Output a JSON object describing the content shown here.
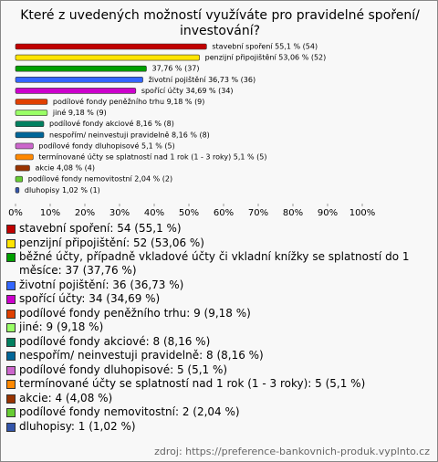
{
  "chart_data": {
    "type": "bar",
    "orientation": "horizontal",
    "title": "Které z uvedených možností využíváte pro pravidelné spoření/ investování?",
    "values": [
      55.1,
      53.06,
      37.76,
      36.73,
      34.69,
      9.18,
      9.18,
      8.16,
      8.16,
      5.1,
      5.1,
      4.08,
      2.04,
      1.02
    ],
    "value_labels": [
      "stavební spoření 55,1 % (54)",
      "penzijní připojištění 53,06 % (52)",
      "37,76 % (37)",
      "životní pojištění 36,73 % (36)",
      "spořící účty 34,69 % (34)",
      "podílové fondy peněžního trhu 9,18 % (9)",
      "jiné 9,18 % (9)",
      "podílové fondy akciové 8,16 % (8)",
      "nespořím/ neinvestuji pravidelně 8,16 % (8)",
      "podílové fondy dluhopisové 5,1 % (5)",
      "termínované účty se splatností nad 1 rok (1 - 3 roky) 5,1 % (5)",
      "akcie 4,08 % (4)",
      "podílové fondy nemovitostní 2,04 % (2)",
      "dluhopisy 1,02 % (1)"
    ],
    "colors": [
      "#c00000",
      "#ffe400",
      "#00a000",
      "#3366ff",
      "#cc00cc",
      "#e04000",
      "#99ff66",
      "#008060",
      "#006699",
      "#cc66cc",
      "#ff8800",
      "#993300",
      "#66cc33",
      "#3355aa"
    ],
    "legend": [
      "stavební spoření: 54 (55,1 %)",
      "penzijní připojištění: 52 (53,06 %)",
      "běžné účty, případně vkladové účty či vkladní knížky se splatností do 1 měsíce: 37 (37,76 %)",
      "životní pojištění: 36 (36,73 %)",
      "spořící účty: 34 (34,69 %)",
      "podílové fondy peněžního trhu: 9 (9,18 %)",
      "jiné: 9 (9,18 %)",
      "podílové fondy akciové: 8 (8,16 %)",
      "nespořím/ neinvestuji pravidelně: 8 (8,16 %)",
      "podílové fondy dluhopisové: 5 (5,1 %)",
      "termínované účty se splatností nad 1 rok (1 - 3 roky): 5 (5,1 %)",
      "akcie: 4 (4,08 %)",
      "podílové fondy nemovitostní: 2 (2,04 %)",
      "dluhopisy: 1 (1,02 %)"
    ],
    "xlim": [
      0,
      100
    ],
    "xticks": [
      {
        "value": 0,
        "label": "0%"
      },
      {
        "value": 10,
        "label": "10%"
      },
      {
        "value": 20,
        "label": "20%"
      },
      {
        "value": 30,
        "label": "30%"
      },
      {
        "value": 40,
        "label": "40%"
      },
      {
        "value": 50,
        "label": "50%"
      },
      {
        "value": 60,
        "label": "60%"
      },
      {
        "value": 70,
        "label": "70%"
      },
      {
        "value": 80,
        "label": "80%"
      },
      {
        "value": 90,
        "label": "90%"
      },
      {
        "value": 100,
        "label": "100%"
      }
    ],
    "source": "zdroj: https://preference-bankovnich-produk.vyplnto.cz"
  }
}
